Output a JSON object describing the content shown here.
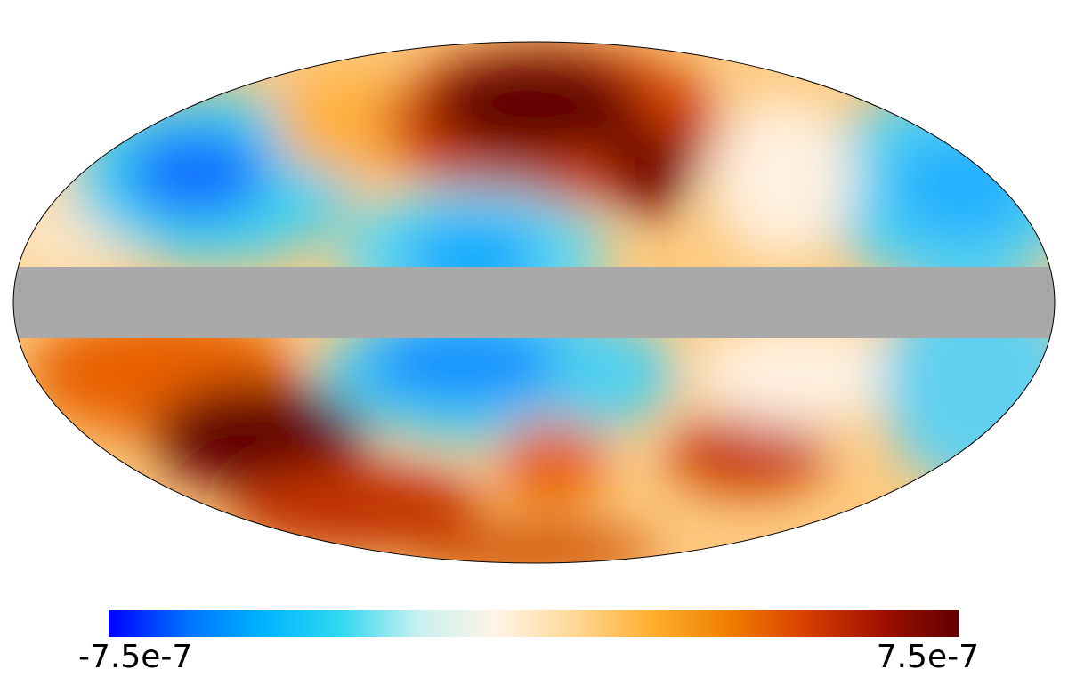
{
  "chart_data": {
    "type": "mollweide",
    "clim": [
      -7.5e-07,
      7.5e-07
    ],
    "cticks": [
      -7.5e-07,
      7.5e-07
    ],
    "colormap": [
      "#0000ff",
      "#0070ff",
      "#00b4ff",
      "#30d8f0",
      "#c8f0f0",
      "#fff4e8",
      "#ffd898",
      "#ffb030",
      "#f08000",
      "#d84000",
      "#a01000",
      "#600000"
    ],
    "mask_color": "#a9a9a9"
  }
}
